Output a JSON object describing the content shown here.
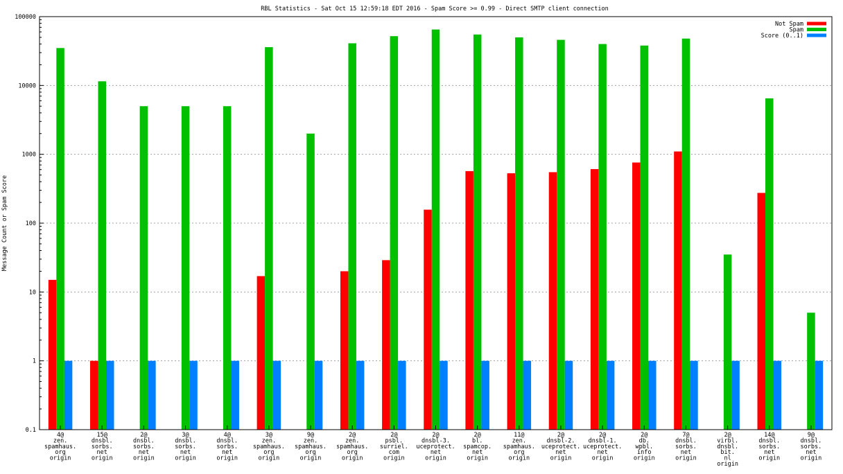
{
  "chart_data": {
    "type": "bar",
    "title": "RBL Statistics - Sat Oct 15 12:59:18 EDT 2016 - Spam Score >= 0.99 - Direct SMTP client connection",
    "ylabel": "Message Count or Spam Score",
    "xlabel": "",
    "yscale": "log",
    "ylim": [
      0.1,
      100000
    ],
    "yticks": [
      "0.1",
      "1",
      "10",
      "100",
      "1000",
      "10000",
      "100000"
    ],
    "grid": true,
    "legend_position": "top-right",
    "categories": [
      [
        "4@",
        "zen.",
        "spamhaus.",
        "org",
        "origin"
      ],
      [
        "15@",
        "dnsbl.",
        "sorbs.",
        "net",
        "origin"
      ],
      [
        "2@",
        "dnsbl.",
        "sorbs.",
        "net",
        "origin"
      ],
      [
        "3@",
        "dnsbl.",
        "sorbs.",
        "net",
        "origin"
      ],
      [
        "4@",
        "dnsbl.",
        "sorbs.",
        "net",
        "origin"
      ],
      [
        "3@",
        "zen.",
        "spamhaus.",
        "org",
        "origin"
      ],
      [
        "9@",
        "zen.",
        "spamhaus.",
        "org",
        "origin"
      ],
      [
        "2@",
        "zen.",
        "spamhaus.",
        "org",
        "origin"
      ],
      [
        "2@",
        "psbl.",
        "surriel.",
        "com",
        "origin"
      ],
      [
        "2@",
        "dnsbl-3.",
        "uceprotect.",
        "net",
        "origin"
      ],
      [
        "2@",
        "bl.",
        "spamcop.",
        "net",
        "origin"
      ],
      [
        "11@",
        "zen.",
        "spamhaus.",
        "org",
        "origin"
      ],
      [
        "2@",
        "dnsbl-2.",
        "uceprotect.",
        "net",
        "origin"
      ],
      [
        "2@",
        "dnsbl-1.",
        "uceprotect.",
        "net",
        "origin"
      ],
      [
        "2@",
        "db.",
        "wpbl.",
        "info",
        "origin"
      ],
      [
        "7@",
        "dnsbl.",
        "sorbs.",
        "net",
        "origin"
      ],
      [
        "2@",
        "virbl.",
        "dnsbl.",
        "bit.",
        "nl",
        "origin"
      ],
      [
        "14@",
        "dnsbl.",
        "sorbs.",
        "net",
        "origin"
      ],
      [
        "9@",
        "dnsbl.",
        "sorbs.",
        "net",
        "origin"
      ]
    ],
    "series": [
      {
        "name": "Not Spam",
        "color": "#ff0000",
        "values": [
          15,
          1,
          null,
          null,
          null,
          17,
          null,
          20,
          29,
          157,
          570,
          530,
          550,
          610,
          760,
          1100,
          null,
          275,
          null
        ]
      },
      {
        "name": "Spam",
        "color": "#00c000",
        "values": [
          35000,
          11500,
          5000,
          5000,
          5000,
          36000,
          2000,
          41000,
          52000,
          65000,
          55000,
          50000,
          46000,
          40000,
          38000,
          48000,
          35,
          6500,
          5
        ]
      },
      {
        "name": "Score (0..1)",
        "color": "#0080ff",
        "values": [
          1,
          1,
          1,
          1,
          1,
          1,
          1,
          1,
          1,
          1,
          1,
          1,
          1,
          1,
          1,
          1,
          1,
          1,
          1
        ]
      }
    ]
  }
}
